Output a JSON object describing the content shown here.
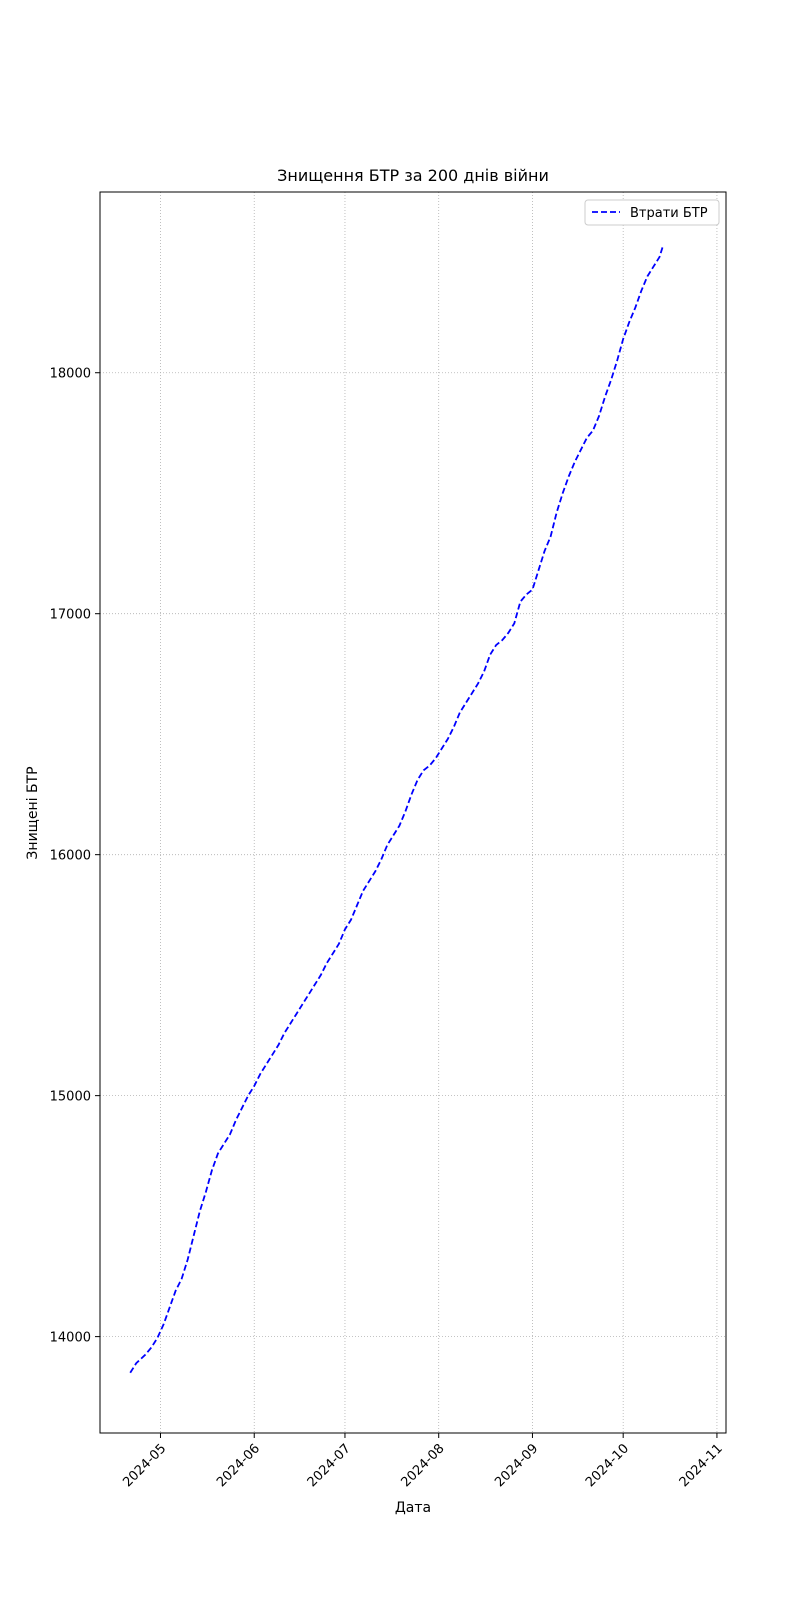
{
  "chart_data": {
    "type": "line",
    "title": "Знищення БТР за 200 днів війни",
    "xlabel": "Дата",
    "ylabel": "Знищені БТР",
    "x_range": [
      "2024-04-11",
      "2024-11-04"
    ],
    "ylim": [
      13600,
      18750
    ],
    "y_ticks": [
      14000,
      15000,
      16000,
      17000,
      18000
    ],
    "x_ticks": [
      "2024-05-01",
      "2024-06-01",
      "2024-07-01",
      "2024-08-01",
      "2024-09-01",
      "2024-10-01",
      "2024-11-01"
    ],
    "x_tick_labels": [
      "2024-05",
      "2024-06",
      "2024-07",
      "2024-08",
      "2024-09",
      "2024-10",
      "2024-11"
    ],
    "grid": true,
    "legend_position": "upper right",
    "series": [
      {
        "name": "Втрати БТР",
        "color": "#0000ff",
        "line_style": "dashed",
        "points": [
          [
            "2024-04-21",
            13850
          ],
          [
            "2024-04-23",
            13890
          ],
          [
            "2024-04-26",
            13925
          ],
          [
            "2024-04-28",
            13955
          ],
          [
            "2024-04-30",
            13995
          ],
          [
            "2024-05-02",
            14050
          ],
          [
            "2024-05-04",
            14120
          ],
          [
            "2024-05-06",
            14190
          ],
          [
            "2024-05-08",
            14240
          ],
          [
            "2024-05-10",
            14320
          ],
          [
            "2024-05-12",
            14420
          ],
          [
            "2024-05-14",
            14520
          ],
          [
            "2024-05-16",
            14600
          ],
          [
            "2024-05-18",
            14690
          ],
          [
            "2024-05-20",
            14760
          ],
          [
            "2024-05-22",
            14800
          ],
          [
            "2024-05-24",
            14840
          ],
          [
            "2024-05-26",
            14900
          ],
          [
            "2024-05-28",
            14950
          ],
          [
            "2024-05-30",
            15000
          ],
          [
            "2024-06-01",
            15040
          ],
          [
            "2024-06-03",
            15090
          ],
          [
            "2024-06-05",
            15130
          ],
          [
            "2024-06-07",
            15170
          ],
          [
            "2024-06-09",
            15210
          ],
          [
            "2024-06-11",
            15260
          ],
          [
            "2024-06-13",
            15300
          ],
          [
            "2024-06-15",
            15340
          ],
          [
            "2024-06-17",
            15380
          ],
          [
            "2024-06-19",
            15420
          ],
          [
            "2024-06-21",
            15460
          ],
          [
            "2024-06-23",
            15500
          ],
          [
            "2024-06-25",
            15550
          ],
          [
            "2024-06-27",
            15590
          ],
          [
            "2024-06-29",
            15630
          ],
          [
            "2024-07-01",
            15690
          ],
          [
            "2024-07-03",
            15730
          ],
          [
            "2024-07-05",
            15790
          ],
          [
            "2024-07-07",
            15850
          ],
          [
            "2024-07-09",
            15890
          ],
          [
            "2024-07-11",
            15930
          ],
          [
            "2024-07-13",
            15980
          ],
          [
            "2024-07-15",
            16040
          ],
          [
            "2024-07-17",
            16080
          ],
          [
            "2024-07-19",
            16120
          ],
          [
            "2024-07-21",
            16180
          ],
          [
            "2024-07-23",
            16250
          ],
          [
            "2024-07-25",
            16310
          ],
          [
            "2024-07-27",
            16350
          ],
          [
            "2024-07-29",
            16370
          ],
          [
            "2024-07-31",
            16400
          ],
          [
            "2024-08-02",
            16440
          ],
          [
            "2024-08-04",
            16480
          ],
          [
            "2024-08-06",
            16530
          ],
          [
            "2024-08-08",
            16590
          ],
          [
            "2024-08-10",
            16630
          ],
          [
            "2024-08-12",
            16670
          ],
          [
            "2024-08-14",
            16710
          ],
          [
            "2024-08-16",
            16760
          ],
          [
            "2024-08-18",
            16830
          ],
          [
            "2024-08-20",
            16870
          ],
          [
            "2024-08-22",
            16890
          ],
          [
            "2024-08-24",
            16920
          ],
          [
            "2024-08-26",
            16960
          ],
          [
            "2024-08-28",
            17050
          ],
          [
            "2024-08-30",
            17080
          ],
          [
            "2024-09-01",
            17100
          ],
          [
            "2024-09-03",
            17180
          ],
          [
            "2024-09-05",
            17260
          ],
          [
            "2024-09-07",
            17320
          ],
          [
            "2024-09-09",
            17420
          ],
          [
            "2024-09-11",
            17500
          ],
          [
            "2024-09-13",
            17570
          ],
          [
            "2024-09-15",
            17630
          ],
          [
            "2024-09-17",
            17680
          ],
          [
            "2024-09-19",
            17730
          ],
          [
            "2024-09-21",
            17760
          ],
          [
            "2024-09-23",
            17820
          ],
          [
            "2024-09-25",
            17900
          ],
          [
            "2024-09-27",
            17970
          ],
          [
            "2024-09-29",
            18050
          ],
          [
            "2024-10-01",
            18140
          ],
          [
            "2024-10-03",
            18210
          ],
          [
            "2024-10-05",
            18270
          ],
          [
            "2024-10-07",
            18340
          ],
          [
            "2024-10-09",
            18400
          ],
          [
            "2024-10-11",
            18440
          ],
          [
            "2024-10-13",
            18480
          ],
          [
            "2024-10-14",
            18520
          ]
        ]
      }
    ]
  }
}
